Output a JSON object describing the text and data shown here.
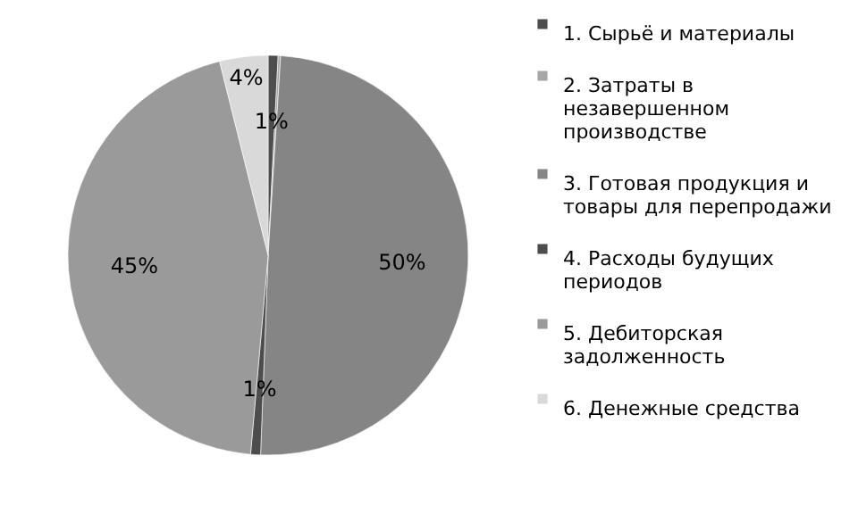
{
  "chart_data": {
    "type": "pie",
    "categories": [
      "1. Сырьё и материалы",
      "2. Затраты в незавершенном производстве",
      "3. Готовая продукция и товары для перепродажи",
      "4. Расходы будущих периодов",
      "5. Дебиторская задолженность",
      "6. Денежные средства"
    ],
    "values": [
      0.8,
      0.2,
      49.6,
      0.8,
      44.7,
      3.9
    ],
    "colors": [
      "#4d4d4d",
      "#a6a6a6",
      "#858585",
      "#4d4d4d",
      "#9a9a9a",
      "#d9d9d9"
    ],
    "value_labels": [
      "1%",
      null,
      "50%",
      "1%",
      "45%",
      "4%"
    ],
    "legend": "right"
  }
}
